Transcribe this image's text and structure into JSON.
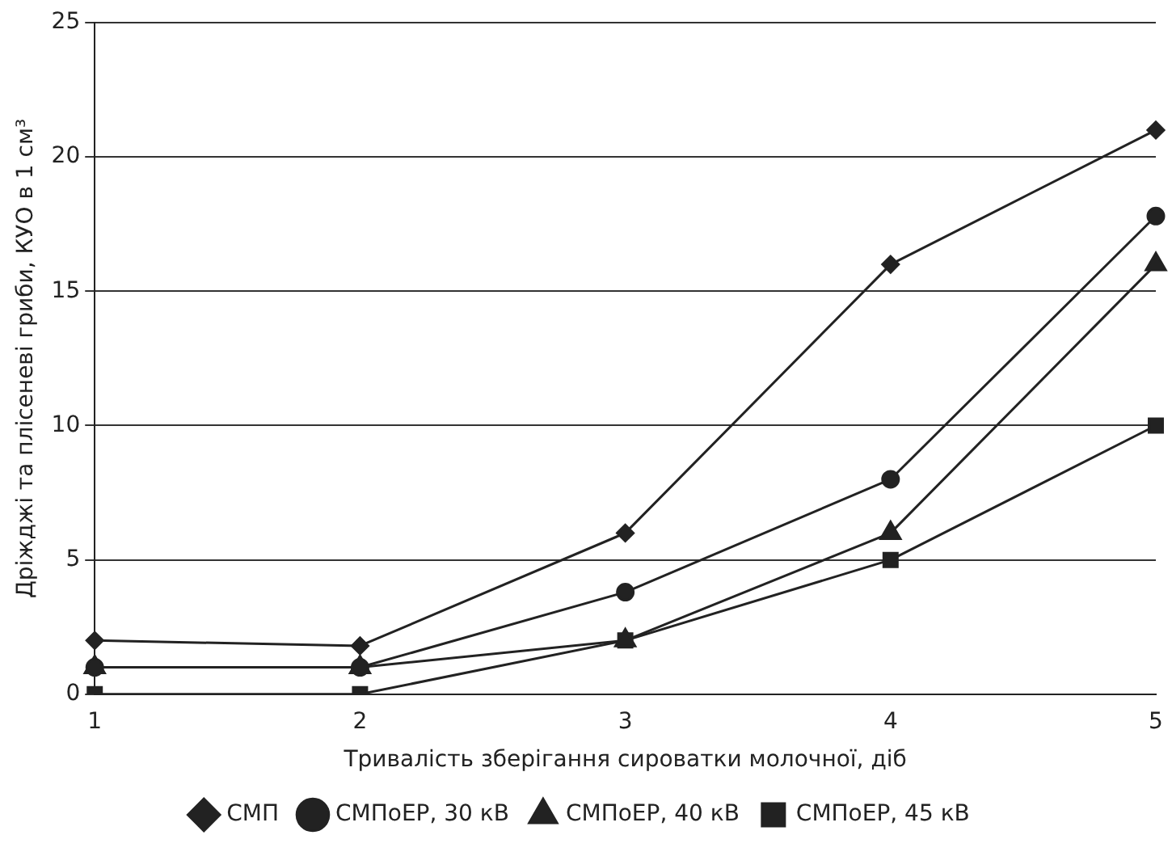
{
  "chart_data": {
    "type": "line",
    "xlabel": "Тривалість зберігання сироватки молочної, діб",
    "ylabel": "Дріжджі та плісеневі гриби, КУО в 1 см³",
    "categories": [
      "1",
      "2",
      "3",
      "4",
      "5"
    ],
    "series": [
      {
        "name": "СМП",
        "color": "#222222",
        "marker": "diamond",
        "values": [
          2,
          1.8,
          6,
          16,
          21
        ]
      },
      {
        "name": "СМПоЕР, 30 кВ",
        "color": "#222222",
        "marker": "circle",
        "values": [
          1,
          1,
          3.8,
          8,
          17.8
        ]
      },
      {
        "name": "СМПоЕР, 40 кВ",
        "color": "#222222",
        "marker": "triangle",
        "values": [
          1,
          1,
          2,
          6,
          16
        ]
      },
      {
        "name": "СМПоЕР, 45 кВ",
        "color": "#222222",
        "marker": "square",
        "values": [
          0,
          0,
          2,
          5,
          10
        ]
      }
    ],
    "ylim": [
      0,
      25
    ],
    "yticks": [
      0,
      5,
      10,
      15,
      20,
      25
    ],
    "grid": "y",
    "legend": "bottom",
    "line_style": "solid"
  }
}
